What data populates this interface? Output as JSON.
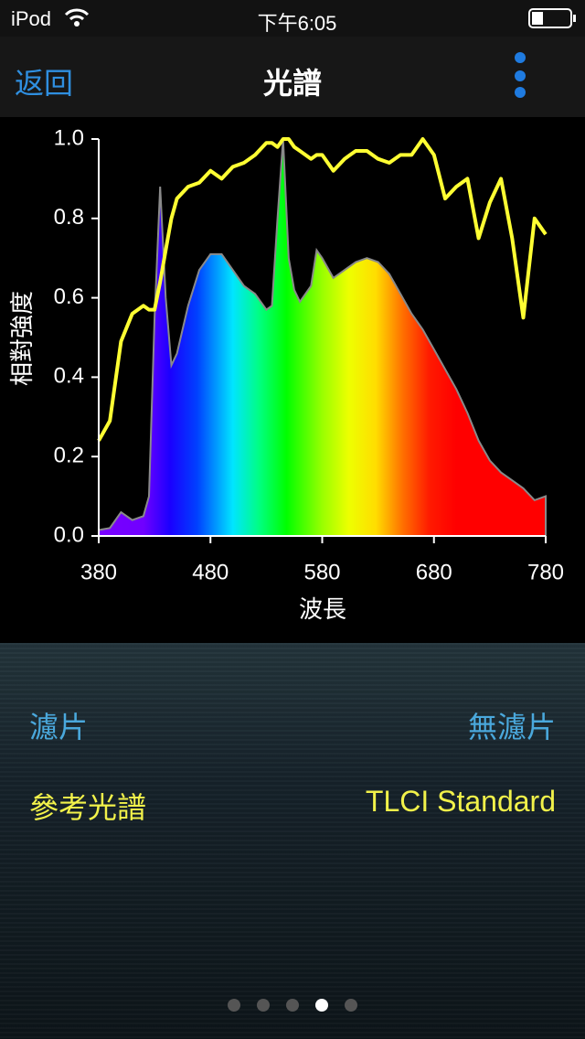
{
  "status_bar": {
    "carrier": "iPod",
    "time": "下午6:05"
  },
  "nav_bar": {
    "back": "返回",
    "title": "光譜"
  },
  "chart_data": {
    "type": "line",
    "x_label": "波長",
    "y_label": "相對強度",
    "x": [
      380,
      390,
      400,
      410,
      420,
      425,
      430,
      435,
      440,
      445,
      450,
      460,
      470,
      480,
      490,
      500,
      510,
      520,
      530,
      535,
      540,
      545,
      550,
      555,
      560,
      570,
      575,
      580,
      590,
      600,
      610,
      620,
      630,
      640,
      650,
      660,
      670,
      680,
      690,
      700,
      710,
      720,
      730,
      740,
      750,
      760,
      770,
      780
    ],
    "series": [
      {
        "type": "area",
        "color": "#8a8a8a",
        "values": [
          0.015,
          0.02,
          0.06,
          0.04,
          0.05,
          0.1,
          0.55,
          0.88,
          0.6,
          0.43,
          0.46,
          0.58,
          0.67,
          0.71,
          0.71,
          0.67,
          0.63,
          0.61,
          0.57,
          0.58,
          0.8,
          1.0,
          0.7,
          0.62,
          0.59,
          0.63,
          0.72,
          0.7,
          0.65,
          0.67,
          0.69,
          0.7,
          0.69,
          0.66,
          0.61,
          0.56,
          0.52,
          0.47,
          0.42,
          0.37,
          0.31,
          0.24,
          0.19,
          0.16,
          0.14,
          0.12,
          0.09,
          0.1
        ]
      },
      {
        "type": "line",
        "color": "#ffff33",
        "values": [
          0.24,
          0.29,
          0.49,
          0.56,
          0.58,
          0.57,
          0.57,
          0.64,
          0.72,
          0.8,
          0.85,
          0.88,
          0.89,
          0.92,
          0.9,
          0.93,
          0.94,
          0.96,
          0.99,
          0.99,
          0.98,
          1.0,
          1.0,
          0.98,
          0.97,
          0.95,
          0.96,
          0.96,
          0.92,
          0.95,
          0.97,
          0.97,
          0.95,
          0.94,
          0.96,
          0.96,
          1.0,
          0.96,
          0.85,
          0.88,
          0.9,
          0.75,
          0.84,
          0.9,
          0.75,
          0.55,
          0.8,
          0.76
        ]
      }
    ],
    "xlim": [
      380,
      780
    ],
    "xticks": [
      380,
      480,
      580,
      680,
      780
    ],
    "ylim": [
      0,
      1
    ],
    "yticks": [
      {
        "value": 0,
        "label": "0.0"
      },
      {
        "value": 0.2,
        "label": "0.2"
      },
      {
        "value": 0.4,
        "label": "0.4"
      },
      {
        "value": 0.6,
        "label": "0.6"
      },
      {
        "value": 0.8,
        "label": "0.8"
      },
      {
        "value": 1,
        "label": "1.0"
      }
    ]
  },
  "settings": [
    {
      "label": "濾片",
      "value": "無濾片"
    },
    {
      "label": "參考光譜",
      "value": "TLCI Standard"
    }
  ]
}
